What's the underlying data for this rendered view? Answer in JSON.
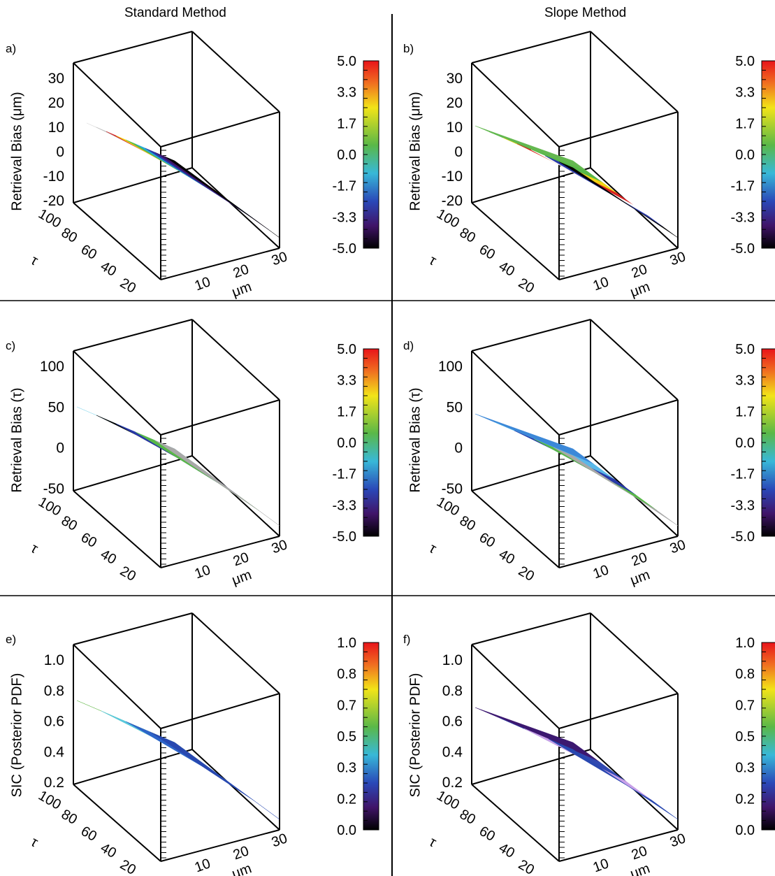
{
  "column_titles": [
    "Standard Method",
    "Slope Method"
  ],
  "chart_data": [
    {
      "panel": "a)",
      "type": "surface3d",
      "zlabel": "Retrieval Bias (μm)",
      "zticks": [
        "30",
        "20",
        "10",
        "0",
        "-10",
        "-20"
      ],
      "tau_ticks": [
        "100",
        "80",
        "60",
        "40",
        "20"
      ],
      "tau_label": "τ",
      "re_ticks": [
        "10",
        "20",
        "30"
      ],
      "re_label": "μm",
      "colorbar_ticks": [
        "5.0",
        "3.3",
        "1.7",
        "0.0",
        "-1.7",
        "-3.3",
        "-5.0"
      ],
      "colorbar_range": [
        -5.0,
        5.0
      ],
      "surface_colors": [
        "#ffffff",
        "#dcdcdc",
        "#bdbdbd",
        "#d62020",
        "#f2d414",
        "#58b848",
        "#24a8d8",
        "#2838a8",
        "#3c1468",
        "#000000"
      ]
    },
    {
      "panel": "b)",
      "type": "surface3d",
      "zlabel": "Retrieval Bias (μm)",
      "zticks": [
        "30",
        "20",
        "10",
        "0",
        "-10",
        "-20"
      ],
      "tau_ticks": [
        "100",
        "80",
        "60",
        "40",
        "20"
      ],
      "tau_label": "τ",
      "re_ticks": [
        "10",
        "20",
        "30"
      ],
      "re_label": "μm",
      "colorbar_ticks": [
        "5.0",
        "3.3",
        "1.7",
        "0.0",
        "-1.7",
        "-3.3",
        "-5.0"
      ],
      "colorbar_range": [
        -5.0,
        5.0
      ],
      "surface_colors": [
        "#64b850",
        "#58b848",
        "#f2d414",
        "#d62020",
        "#ffffff",
        "#2838a8",
        "#000000"
      ]
    },
    {
      "panel": "c)",
      "type": "surface3d",
      "zlabel": "Retrieval Bias (τ)",
      "zticks": [
        "100",
        "50",
        "0",
        "-50"
      ],
      "tau_ticks": [
        "100",
        "80",
        "60",
        "40",
        "20"
      ],
      "tau_label": "τ",
      "re_ticks": [
        "10",
        "20",
        "30"
      ],
      "re_label": "μm",
      "colorbar_ticks": [
        "5.0",
        "3.3",
        "1.7",
        "0.0",
        "-1.7",
        "-3.3",
        "-5.0"
      ],
      "colorbar_range": [
        -5.0,
        5.0
      ],
      "surface_colors": [
        "#8cd8ec",
        "#000000",
        "#2838a8",
        "#58b848",
        "#a8a8a8"
      ]
    },
    {
      "panel": "d)",
      "type": "surface3d",
      "zlabel": "Retrieval Bias (τ)",
      "zticks": [
        "100",
        "50",
        "0",
        "-50"
      ],
      "tau_ticks": [
        "100",
        "80",
        "60",
        "40",
        "20"
      ],
      "tau_label": "τ",
      "re_ticks": [
        "10",
        "20",
        "30"
      ],
      "re_label": "μm",
      "colorbar_ticks": [
        "5.0",
        "3.3",
        "1.7",
        "0.0",
        "-1.7",
        "-3.3",
        "-5.0"
      ],
      "colorbar_range": [
        -5.0,
        5.0
      ],
      "surface_colors": [
        "#3c88d8",
        "#5ab8e8",
        "#2838a8",
        "#58b848",
        "#a8a8a8"
      ]
    },
    {
      "panel": "e)",
      "type": "surface3d",
      "zlabel": "SIC (Posterior PDF)",
      "zticks": [
        "1.0",
        "0.8",
        "0.6",
        "0.4",
        "0.2"
      ],
      "tau_ticks": [
        "100",
        "80",
        "60",
        "40",
        "20"
      ],
      "tau_label": "τ",
      "re_ticks": [
        "10",
        "20",
        "30"
      ],
      "re_label": "μm",
      "colorbar_ticks": [
        "1.0",
        "0.8",
        "0.7",
        "0.5",
        "0.3",
        "0.2",
        "0.0"
      ],
      "colorbar_range": [
        0.0,
        1.0
      ],
      "surface_colors": [
        "#62b848",
        "#58c8e0",
        "#2e64c8",
        "#2848b0"
      ]
    },
    {
      "panel": "f)",
      "type": "surface3d",
      "zlabel": "SIC (Posterior PDF)",
      "zticks": [
        "1.0",
        "0.8",
        "0.6",
        "0.4",
        "0.2"
      ],
      "tau_ticks": [
        "100",
        "80",
        "60",
        "40",
        "20"
      ],
      "tau_label": "τ",
      "re_ticks": [
        "10",
        "20",
        "30"
      ],
      "re_label": "μm",
      "colorbar_ticks": [
        "1.0",
        "0.8",
        "0.7",
        "0.5",
        "0.3",
        "0.2",
        "0.0"
      ],
      "colorbar_range": [
        0.0,
        1.0
      ],
      "surface_colors": [
        "#3c1870",
        "#3048b0",
        "#c8a0e8",
        "#2848b0"
      ]
    }
  ]
}
